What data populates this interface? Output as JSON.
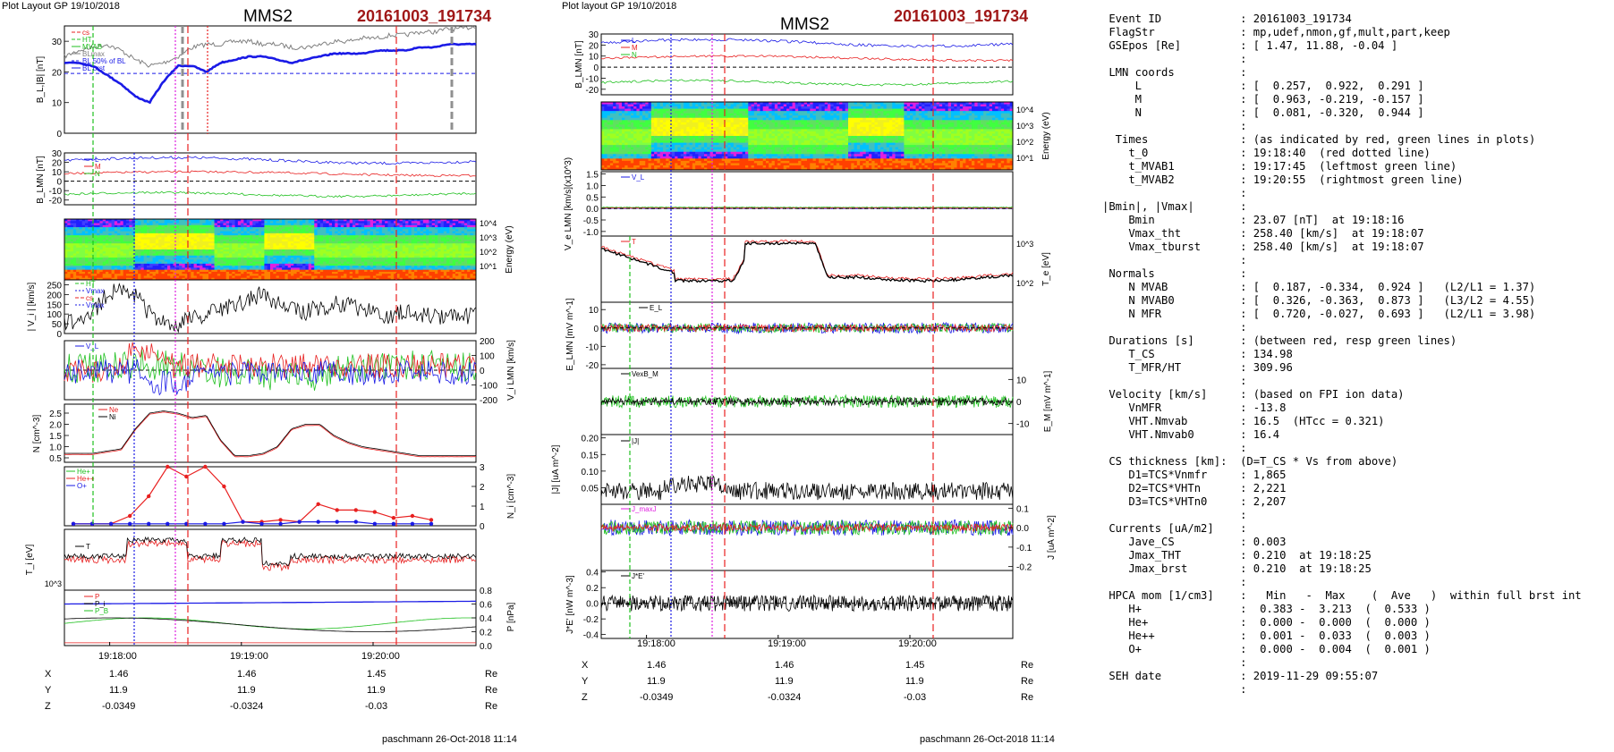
{
  "left": {
    "header": "Plot Layout GP 19/10/2018",
    "sc": "MMS2",
    "event": "20161003_191734",
    "footer": "paschmann 26-Oct-2018 11:14",
    "times": [
      "19:18:00",
      "19:19:00",
      "19:20:00"
    ],
    "pos": {
      "X": [
        "1.46",
        "1.46",
        "1.45"
      ],
      "Y": [
        "11.9",
        "11.9",
        "11.9"
      ],
      "Z": [
        "-0.0349",
        "-0.0324",
        "-0.03"
      ],
      "unit": "Re"
    }
  },
  "right": {
    "header": "Plot layout GP 19/10/2018",
    "sc": "MMS2",
    "event": "20161003_191734",
    "footer": "paschmann 26-Oct-2018 11:14",
    "times": [
      "19:18:00",
      "19:19:00",
      "19:20:00"
    ],
    "pos": {
      "X": [
        "1.46",
        "1.46",
        "1.45"
      ],
      "Y": [
        "11.9",
        "11.9",
        "11.9"
      ],
      "Z": [
        "-0.0349",
        "-0.0324",
        "-0.03"
      ],
      "unit": "Re"
    }
  },
  "chart_data": [
    {
      "type": "line",
      "ylabel": "B_L,|B| [nT]",
      "ylim": [
        0,
        35
      ],
      "yticks": [
        "30",
        "20",
        "10",
        "0"
      ],
      "legend": [
        "cs",
        "HT",
        "MVAB",
        "BLmax",
        "BL 50% of BL",
        "BL brst"
      ],
      "series": [
        {
          "name": "|B|",
          "values": [
            25,
            27,
            28,
            29,
            27,
            24,
            22,
            23,
            25,
            28,
            29,
            29,
            30,
            30,
            29,
            29,
            28,
            28,
            29,
            30,
            30,
            31,
            31,
            32,
            32,
            33,
            33,
            34,
            34,
            35
          ]
        },
        {
          "name": "B_L",
          "values": [
            23,
            23,
            22,
            19,
            16,
            12,
            10,
            17,
            22,
            22,
            20,
            23,
            24,
            25,
            25,
            24,
            23,
            24,
            25,
            26,
            26,
            26,
            27,
            27,
            27,
            28,
            28,
            29,
            29,
            29
          ]
        }
      ]
    },
    {
      "type": "line",
      "ylabel": "B_LMN [nT]",
      "ylim": [
        -25,
        30
      ],
      "yticks": [
        "30",
        "20",
        "10",
        "0",
        "-10",
        "-20"
      ],
      "legend": [
        "L",
        "M",
        "N"
      ]
    },
    {
      "type": "heatmap",
      "ylabel": "Energy (eV)",
      "yticks": [
        "10^4",
        "10^3",
        "10^2",
        "10^1"
      ]
    },
    {
      "type": "line",
      "ylabel": "| V_i | [km/s]",
      "ylim": [
        0,
        275
      ],
      "yticks": [
        "250",
        "200",
        "150",
        "100",
        "50",
        "0"
      ],
      "legend": [
        "HT",
        "Vmax",
        "cs",
        "Vmax"
      ],
      "series": [
        {
          "name": "|V_i|",
          "values": [
            60,
            70,
            110,
            200,
            240,
            200,
            100,
            50,
            40,
            80,
            100,
            130,
            140,
            180,
            200,
            150,
            120,
            110,
            130,
            150,
            140,
            120,
            100,
            90,
            110,
            100,
            90,
            80,
            90,
            100
          ]
        }
      ]
    },
    {
      "type": "line",
      "ylabel": "V_i LMN [km/s]",
      "ylim": [
        -200,
        200
      ],
      "yticks": [
        "200",
        "100",
        "0",
        "-100",
        "-200"
      ],
      "legend": [
        "V_L"
      ]
    },
    {
      "type": "line",
      "ylabel": "N [cm^-3]",
      "ylim": [
        0.3,
        2.9
      ],
      "yticks": [
        "2.5",
        "2.0",
        "1.5",
        "1.0",
        "0.5"
      ],
      "legend": [
        "Ne",
        "Ni"
      ],
      "series": [
        {
          "name": "Ni",
          "values": [
            0.7,
            0.7,
            0.7,
            0.8,
            0.9,
            1.8,
            2.5,
            2.6,
            2.5,
            2.3,
            2.4,
            1.3,
            0.6,
            0.6,
            0.7,
            1.0,
            1.8,
            2.0,
            2.0,
            1.5,
            1.2,
            1.0,
            0.9,
            0.8,
            0.7,
            0.6,
            0.6,
            0.6,
            0.6,
            0.6
          ]
        }
      ]
    },
    {
      "type": "line",
      "ylabel": "N_i [cm^-3]",
      "ylim": [
        0,
        3
      ],
      "yticks": [
        "3",
        "2",
        "1",
        "0"
      ],
      "legend": [
        "He+",
        "He++",
        "O+"
      ],
      "series": [
        {
          "name": "He++",
          "values": [
            0.1,
            0.1,
            0.1,
            0.5,
            1.5,
            3.0,
            2.5,
            3.0,
            2.0,
            0.2,
            0.2,
            0.3,
            0.2,
            1.1,
            0.8,
            0.8,
            0.7,
            0.4,
            0.5,
            0.3
          ]
        },
        {
          "name": "O+",
          "values": [
            0.1,
            0.1,
            0.1,
            0.1,
            0.1,
            0.1,
            0.1,
            0.1,
            0.1,
            0.2,
            0.1,
            0.1,
            0.2,
            0.2,
            0.2,
            0.2,
            0.1,
            0.1,
            0.1,
            0.1
          ]
        }
      ]
    },
    {
      "type": "line",
      "ylabel": "T_i [eV]",
      "yticks": [
        "10^3"
      ],
      "legend": [
        "T"
      ]
    },
    {
      "type": "line",
      "ylabel": "P [nPa]",
      "ylim": [
        0,
        0.8
      ],
      "yticks": [
        "0.8",
        "0.6",
        "0.4",
        "0.2",
        "0.0"
      ],
      "legend": [
        "P",
        "P_i",
        "P_B"
      ]
    },
    {
      "type": "line",
      "ylabel": "B_LMN [nT]",
      "ylim": [
        -25,
        30
      ],
      "yticks": [
        "30",
        "20",
        "10",
        "0",
        "-10",
        "-20"
      ],
      "legend": [
        "L",
        "M",
        "N"
      ]
    },
    {
      "type": "heatmap",
      "ylabel": "Energy (eV)",
      "yticks": [
        "10^4",
        "10^3",
        "10^2",
        "10^1"
      ]
    },
    {
      "type": "line",
      "ylabel": "V_e LMN [km/s](x10^3)",
      "ylim": [
        -1.2,
        1.6
      ],
      "yticks": [
        "1.5",
        "1.0",
        "0.5",
        "0.0",
        "-0.5",
        "-1.0"
      ],
      "legend": [
        "V_L"
      ]
    },
    {
      "type": "line",
      "ylabel": "T_e [eV]",
      "yticks": [
        "10^3",
        "10^2"
      ],
      "legend": [
        "T"
      ]
    },
    {
      "type": "line",
      "ylabel": "E_LMN [mV m^-1]",
      "ylim": [
        -22,
        14
      ],
      "yticks": [
        "10",
        "0",
        "-10",
        "-20"
      ],
      "legend": [
        "E_L"
      ]
    },
    {
      "type": "line",
      "ylabel": "E_M [mV m^-1]",
      "ylim": [
        -15,
        15
      ],
      "yticks": [
        "10",
        "0",
        "-10"
      ],
      "legend": [
        "VexB_M"
      ]
    },
    {
      "type": "line",
      "ylabel": "|J| [uA m^-2]",
      "ylim": [
        0,
        0.21
      ],
      "yticks": [
        "0.20",
        "0.15",
        "0.10",
        "0.05"
      ],
      "legend": [
        "|J|"
      ]
    },
    {
      "type": "line",
      "ylabel": "J [uA m^-2]",
      "ylim": [
        -0.22,
        0.12
      ],
      "yticks": [
        "0.1",
        "0.0",
        "-0.1",
        "-0.2"
      ],
      "legend": [
        "J_maxJ"
      ]
    },
    {
      "type": "line",
      "ylabel": "J*E' [nW m^-3]",
      "ylim": [
        -0.45,
        0.42
      ],
      "yticks": [
        "0.4",
        "0.2",
        "0.0",
        "-0.2",
        "-0.4"
      ],
      "legend": [
        "J*E'"
      ]
    }
  ],
  "info": [
    " Event ID            : 20161003_191734",
    " FlagStr             : mp,udef,nmon,gf,mult,part,keep",
    " GSEpos [Re]         : [ 1.47, 11.88, -0.04 ]",
    "                     :",
    " LMN coords          :",
    "     L               : [  0.257,  0.922,  0.291 ]",
    "     M               : [  0.963, -0.219, -0.157 ]",
    "     N               : [  0.081, -0.320,  0.944 ]",
    "                     :",
    "  Times              : (as indicated by red, green lines in plots)",
    "    t_0              : 19:18:40  (red dotted line)",
    "    t_MVAB1          : 19:17:45  (leftmost green line)",
    "    t_MVAB2          : 19:20:55  (rightmost green line)",
    "                     :",
    "|Bmin|, |Vmax|       :",
    "    Bmin             : 23.07 [nT]  at 19:18:16",
    "    Vmax_tht         : 258.40 [km/s]  at 19:18:07",
    "    Vmax_tburst      : 258.40 [km/s]  at 19:18:07",
    "                     :",
    " Normals             :",
    "    N MVAB           : [  0.187, -0.334,  0.924 ]   (L2/L1 = 1.37)",
    "    N MVAB0          : [  0.326, -0.363,  0.873 ]   (L3/L2 = 4.55)",
    "    N MFR            : [  0.720, -0.027,  0.693 ]   (L2/L1 = 3.98)",
    "                     :",
    " Durations [s]       : (between red, resp green lines)",
    "    T_CS             : 134.98",
    "    T_MFR/HT         : 309.96",
    "                     :",
    " Velocity [km/s]     : (based on FPI ion data)",
    "    VnMFR            : -13.8",
    "    VHT.Nmvab        : 16.5  (HTcc = 0.321)",
    "    VHT.Nmvab0       : 16.4",
    "                     :",
    " CS thickness [km]:  (D=T_CS * Vs from above)",
    "    D1=TCS*Vnmfr     : 1,865",
    "    D2=TCS*VHTn      : 2,221",
    "    D3=TCS*VHTn0     : 2,207",
    "                     :",
    " Currents [uA/m2]    :",
    "    Jave_CS          : 0.003",
    "    Jmax_THT         : 0.210  at 19:18:25",
    "    Jmax_brst        : 0.210  at 19:18:25",
    "                     :",
    " HPCA mom [1/cm3]    :   Min   -  Max    (  Ave   )  within full brst int",
    "    H+               :  0.383 -  3.213  (  0.533 )",
    "    He+              :  0.000 -  0.000  (  0.000 )",
    "    He++             :  0.001 -  0.033  (  0.003 )",
    "    O+               :  0.000 -  0.004  (  0.001 )",
    "                     :",
    " SEH date            : 2019-11-29 09:55:07",
    "                     :"
  ],
  "colors": {
    "event": "#a01818",
    "red": "#e82020",
    "blue": "#1a1ae6",
    "green": "#20c020",
    "black": "#000000",
    "magenta": "#e020e0"
  }
}
